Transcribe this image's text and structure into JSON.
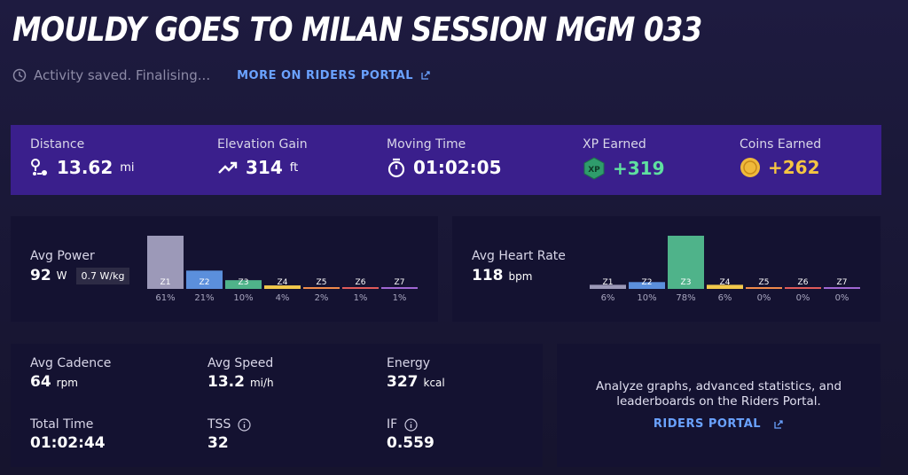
{
  "header": {
    "title": "MOULDY GOES TO MILAN SESSION MGM 033",
    "status": "Activity saved. Finalising...",
    "link": "MORE ON RIDERS PORTAL"
  },
  "stats": [
    {
      "label": "Distance",
      "value": "13.62",
      "unit": "mi"
    },
    {
      "label": "Elevation Gain",
      "value": "314",
      "unit": "ft"
    },
    {
      "label": "Moving Time",
      "value": "01:02:05"
    },
    {
      "label": "XP Earned",
      "value": "+319",
      "icon_text": "XP"
    },
    {
      "label": "Coins Earned",
      "value": "+262"
    }
  ],
  "zone_colors": [
    "#9c99b8",
    "#5b8fdc",
    "#4fb38a",
    "#f2c94c",
    "#f08a4b",
    "#e05a5a",
    "#a066d3"
  ],
  "power": {
    "label": "Avg Power",
    "value": "92",
    "unit": "W",
    "per_kg": "0.7 W/kg",
    "zones": [
      "Z1",
      "Z2",
      "Z3",
      "Z4",
      "Z5",
      "Z6",
      "Z7"
    ],
    "values": [
      61,
      21,
      10,
      4,
      2,
      1,
      1
    ],
    "value_labels": [
      "61%",
      "21%",
      "10%",
      "4%",
      "2%",
      "1%",
      "1%"
    ]
  },
  "heart_rate": {
    "label": "Avg Heart Rate",
    "value": "118",
    "unit": "bpm",
    "zones": [
      "Z1",
      "Z2",
      "Z3",
      "Z4",
      "Z5",
      "Z6",
      "Z7"
    ],
    "values": [
      6,
      10,
      78,
      6,
      0,
      0,
      0
    ],
    "value_labels": [
      "6%",
      "10%",
      "78%",
      "6%",
      "0%",
      "0%",
      "0%"
    ]
  },
  "metrics": [
    {
      "label": "Avg Cadence",
      "value": "64",
      "unit": "rpm"
    },
    {
      "label": "Avg Speed",
      "value": "13.2",
      "unit": "mi/h"
    },
    {
      "label": "Energy",
      "value": "327",
      "unit": "kcal"
    },
    {
      "label": "Total Time",
      "value": "01:02:44"
    },
    {
      "label": "TSS",
      "value": "32"
    },
    {
      "label": "IF",
      "value": "0.559"
    }
  ],
  "promo": {
    "text": "Analyze graphs, advanced statistics, and leaderboards on the Riders Portal.",
    "link": "RIDERS PORTAL"
  }
}
